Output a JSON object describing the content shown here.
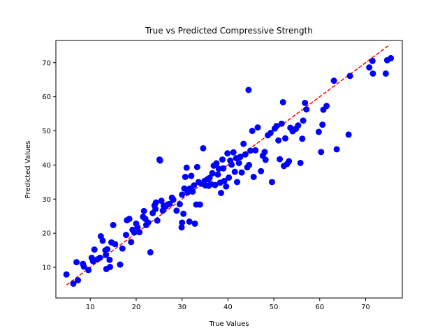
{
  "chart_data": {
    "type": "scatter",
    "title": "True vs Predicted Compressive Strength",
    "xlabel": "True Values",
    "ylabel": "Predicted Values",
    "xlim": [
      2.5,
      78
    ],
    "ylim": [
      1,
      76.5
    ],
    "xticks": [
      10,
      20,
      30,
      40,
      50,
      60,
      70
    ],
    "yticks": [
      10,
      20,
      30,
      40,
      50,
      60,
      70
    ],
    "grid": false,
    "series": [
      {
        "color": "#0000ff",
        "points": [
          [
            4.8,
            7.9
          ],
          [
            6.3,
            5.2
          ],
          [
            7.0,
            11.5
          ],
          [
            7.3,
            6.2
          ],
          [
            8.4,
            11.0
          ],
          [
            8.6,
            10.2
          ],
          [
            9.6,
            9.2
          ],
          [
            10.3,
            12.8
          ],
          [
            10.6,
            11.8
          ],
          [
            10.9,
            15.2
          ],
          [
            11.5,
            12.3
          ],
          [
            12.1,
            12.8
          ],
          [
            12.3,
            19.1
          ],
          [
            12.7,
            17.8
          ],
          [
            13.3,
            15.0
          ],
          [
            13.4,
            13.6
          ],
          [
            13.5,
            9.5
          ],
          [
            13.7,
            15.3
          ],
          [
            14.2,
            12.2
          ],
          [
            14.3,
            10.1
          ],
          [
            14.6,
            17.3
          ],
          [
            15.0,
            22.4
          ],
          [
            15.4,
            16.8
          ],
          [
            16.5,
            10.8
          ],
          [
            17.0,
            15.5
          ],
          [
            17.8,
            19.5
          ],
          [
            18.0,
            23.8
          ],
          [
            18.5,
            24.2
          ],
          [
            18.9,
            17.4
          ],
          [
            19.2,
            21.0
          ],
          [
            19.6,
            20.2
          ],
          [
            20.0,
            22.8
          ],
          [
            20.3,
            21.7
          ],
          [
            20.7,
            20.3
          ],
          [
            21.5,
            24.8
          ],
          [
            21.7,
            26.5
          ],
          [
            22.0,
            24.2
          ],
          [
            22.2,
            22.4
          ],
          [
            22.6,
            23.1
          ],
          [
            23.1,
            14.4
          ],
          [
            23.6,
            25.9
          ],
          [
            24.0,
            28.1
          ],
          [
            24.2,
            27.1
          ],
          [
            24.3,
            29.0
          ],
          [
            24.6,
            23.7
          ],
          [
            25.1,
            41.6
          ],
          [
            25.2,
            41.3
          ],
          [
            25.5,
            29.5
          ],
          [
            25.8,
            26.6
          ],
          [
            26.0,
            28.0
          ],
          [
            26.4,
            27.8
          ],
          [
            26.8,
            28.4
          ],
          [
            27.3,
            28.6
          ],
          [
            27.8,
            30.4
          ],
          [
            28.1,
            29.8
          ],
          [
            28.8,
            26.6
          ],
          [
            29.5,
            28.5
          ],
          [
            29.9,
            21.7
          ],
          [
            30.0,
            31.3
          ],
          [
            30.0,
            23.1
          ],
          [
            30.3,
            25.7
          ],
          [
            30.5,
            33.1
          ],
          [
            30.7,
            36.5
          ],
          [
            31.0,
            39.2
          ],
          [
            31.2,
            31.9
          ],
          [
            31.4,
            32.6
          ],
          [
            31.6,
            23.4
          ],
          [
            31.7,
            33.1
          ],
          [
            32.0,
            36.8
          ],
          [
            32.3,
            32.2
          ],
          [
            32.6,
            34.0
          ],
          [
            32.8,
            22.8
          ],
          [
            33.1,
            28.4
          ],
          [
            33.3,
            39.4
          ],
          [
            33.6,
            35.0
          ],
          [
            33.9,
            28.4
          ],
          [
            34.2,
            34.5
          ],
          [
            34.6,
            44.9
          ],
          [
            34.9,
            35.3
          ],
          [
            35.1,
            34.0
          ],
          [
            35.5,
            35.8
          ],
          [
            35.8,
            33.9
          ],
          [
            36.0,
            36.2
          ],
          [
            36.3,
            34.4
          ],
          [
            36.6,
            37.6
          ],
          [
            36.9,
            39.8
          ],
          [
            37.2,
            34.1
          ],
          [
            37.5,
            40.5
          ],
          [
            37.8,
            37.2
          ],
          [
            38.0,
            38.9
          ],
          [
            38.3,
            34.8
          ],
          [
            38.5,
            31.8
          ],
          [
            38.8,
            41.6
          ],
          [
            39.0,
            39.0
          ],
          [
            39.2,
            35.3
          ],
          [
            39.6,
            33.7
          ],
          [
            39.9,
            43.4
          ],
          [
            40.2,
            36.3
          ],
          [
            40.5,
            41.3
          ],
          [
            40.8,
            40.1
          ],
          [
            41.2,
            43.7
          ],
          [
            41.5,
            38.0
          ],
          [
            41.8,
            42.0
          ],
          [
            42.0,
            35.0
          ],
          [
            42.4,
            40.6
          ],
          [
            42.7,
            42.4
          ],
          [
            43.0,
            37.8
          ],
          [
            43.4,
            46.2
          ],
          [
            43.8,
            43.1
          ],
          [
            44.2,
            39.3
          ],
          [
            44.5,
            62.0
          ],
          [
            44.6,
            40.0
          ],
          [
            44.9,
            44.2
          ],
          [
            45.3,
            50.0
          ],
          [
            45.6,
            36.5
          ],
          [
            46.0,
            44.3
          ],
          [
            46.5,
            51.0
          ],
          [
            47.2,
            38.2
          ],
          [
            47.6,
            42.7
          ],
          [
            48.0,
            43.8
          ],
          [
            48.2,
            41.5
          ],
          [
            48.7,
            48.7
          ],
          [
            49.3,
            49.4
          ],
          [
            49.6,
            35.0
          ],
          [
            50.2,
            50.7
          ],
          [
            50.6,
            51.4
          ],
          [
            51.0,
            47.2
          ],
          [
            51.3,
            41.7
          ],
          [
            51.7,
            52.1
          ],
          [
            52.0,
            58.4
          ],
          [
            52.2,
            39.7
          ],
          [
            52.5,
            47.8
          ],
          [
            52.9,
            40.3
          ],
          [
            53.3,
            41.1
          ],
          [
            53.6,
            50.9
          ],
          [
            54.1,
            49.9
          ],
          [
            54.8,
            50.6
          ],
          [
            55.3,
            51.6
          ],
          [
            55.8,
            40.6
          ],
          [
            56.2,
            47.7
          ],
          [
            56.4,
            53.0
          ],
          [
            56.8,
            58.2
          ],
          [
            57.1,
            56.3
          ],
          [
            59.8,
            49.7
          ],
          [
            60.3,
            43.8
          ],
          [
            60.6,
            51.8
          ],
          [
            60.8,
            56.2
          ],
          [
            61.5,
            57.3
          ],
          [
            63.1,
            64.7
          ],
          [
            63.7,
            44.6
          ],
          [
            66.3,
            48.9
          ],
          [
            66.6,
            66.1
          ],
          [
            70.8,
            68.6
          ],
          [
            71.5,
            70.5
          ],
          [
            71.6,
            66.8
          ],
          [
            74.4,
            66.8
          ],
          [
            74.7,
            70.7
          ],
          [
            75.5,
            71.3
          ]
        ]
      }
    ],
    "reference_line": {
      "color": "#ff0000",
      "style": "dashed",
      "from": [
        4.8,
        4.8
      ],
      "to": [
        75.3,
        75.3
      ]
    }
  }
}
